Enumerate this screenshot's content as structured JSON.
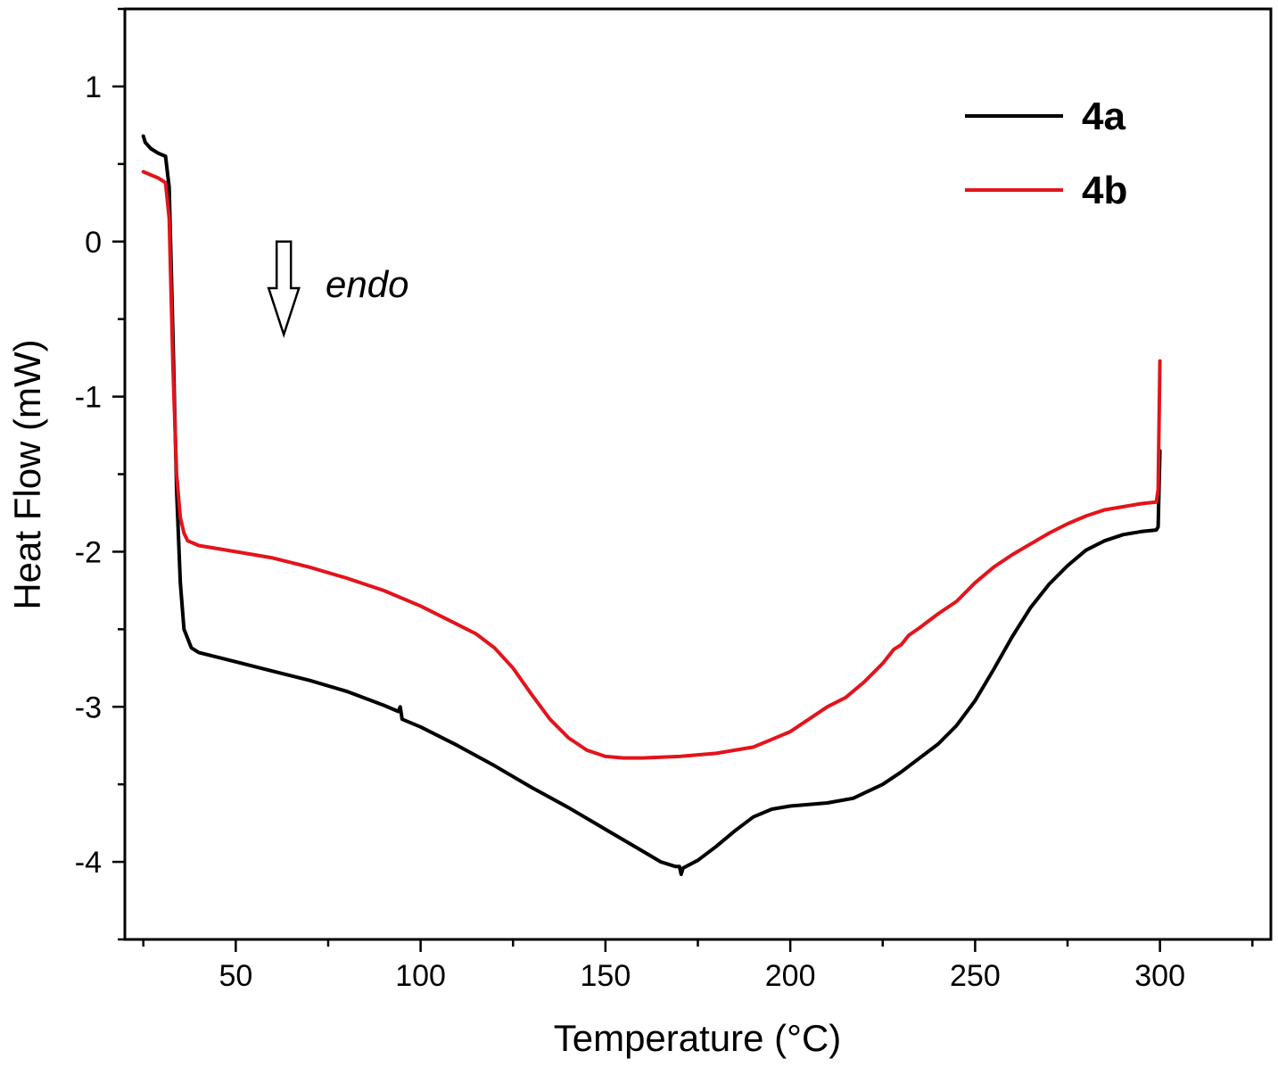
{
  "chart_data": {
    "type": "line",
    "title": "",
    "xlabel": "Temperature (°C)",
    "ylabel": "Heat Flow (mW)",
    "xlim": [
      20,
      330
    ],
    "ylim": [
      -4.5,
      1.5
    ],
    "xticks": [
      50,
      100,
      150,
      200,
      250,
      300
    ],
    "xtick_labels": [
      "50",
      "100",
      "150",
      "200",
      "250",
      "300"
    ],
    "yticks": [
      1,
      0,
      -1,
      -2,
      -3,
      -4
    ],
    "ytick_labels": [
      "1",
      "0",
      "-1",
      "-2",
      "-3",
      "-4"
    ],
    "grid": false,
    "legend_position": "top-right",
    "annotation": {
      "text": "endo",
      "arrow": "down",
      "x": 63,
      "y_top": 0.0,
      "y_bottom": -0.6
    },
    "series": [
      {
        "name": "4a",
        "color": "#000000",
        "points": [
          [
            25,
            0.68
          ],
          [
            25.5,
            0.64
          ],
          [
            27,
            0.6
          ],
          [
            29,
            0.57
          ],
          [
            31,
            0.55
          ],
          [
            32,
            0.35
          ],
          [
            33,
            -0.6
          ],
          [
            34,
            -1.6
          ],
          [
            35,
            -2.2
          ],
          [
            36,
            -2.5
          ],
          [
            38,
            -2.62
          ],
          [
            40,
            -2.65
          ],
          [
            50,
            -2.71
          ],
          [
            60,
            -2.77
          ],
          [
            70,
            -2.83
          ],
          [
            80,
            -2.9
          ],
          [
            90,
            -2.99
          ],
          [
            94,
            -3.03
          ],
          [
            94.5,
            -3.0
          ],
          [
            95,
            -3.08
          ],
          [
            100,
            -3.13
          ],
          [
            110,
            -3.25
          ],
          [
            120,
            -3.38
          ],
          [
            130,
            -3.52
          ],
          [
            140,
            -3.65
          ],
          [
            150,
            -3.79
          ],
          [
            160,
            -3.93
          ],
          [
            165,
            -4.0
          ],
          [
            169,
            -4.03
          ],
          [
            170,
            -4.03
          ],
          [
            170.5,
            -4.08
          ],
          [
            171,
            -4.04
          ],
          [
            175,
            -3.99
          ],
          [
            180,
            -3.9
          ],
          [
            185,
            -3.8
          ],
          [
            190,
            -3.71
          ],
          [
            195,
            -3.66
          ],
          [
            200,
            -3.64
          ],
          [
            210,
            -3.62
          ],
          [
            217,
            -3.59
          ],
          [
            225,
            -3.5
          ],
          [
            230,
            -3.42
          ],
          [
            240,
            -3.24
          ],
          [
            245,
            -3.12
          ],
          [
            250,
            -2.96
          ],
          [
            255,
            -2.76
          ],
          [
            260,
            -2.55
          ],
          [
            265,
            -2.36
          ],
          [
            270,
            -2.21
          ],
          [
            275,
            -2.09
          ],
          [
            280,
            -1.99
          ],
          [
            285,
            -1.93
          ],
          [
            290,
            -1.89
          ],
          [
            295,
            -1.87
          ],
          [
            299,
            -1.86
          ],
          [
            299.5,
            -1.84
          ],
          [
            300,
            -1.35
          ]
        ]
      },
      {
        "name": "4b",
        "color": "#e3141b",
        "points": [
          [
            25,
            0.45
          ],
          [
            27,
            0.43
          ],
          [
            29,
            0.41
          ],
          [
            31,
            0.38
          ],
          [
            32,
            0.15
          ],
          [
            33,
            -0.8
          ],
          [
            34,
            -1.5
          ],
          [
            35,
            -1.78
          ],
          [
            36,
            -1.88
          ],
          [
            37,
            -1.93
          ],
          [
            40,
            -1.96
          ],
          [
            50,
            -2.0
          ],
          [
            60,
            -2.04
          ],
          [
            70,
            -2.1
          ],
          [
            80,
            -2.17
          ],
          [
            90,
            -2.25
          ],
          [
            100,
            -2.35
          ],
          [
            110,
            -2.47
          ],
          [
            115,
            -2.53
          ],
          [
            120,
            -2.62
          ],
          [
            125,
            -2.75
          ],
          [
            130,
            -2.92
          ],
          [
            135,
            -3.08
          ],
          [
            140,
            -3.2
          ],
          [
            145,
            -3.28
          ],
          [
            150,
            -3.32
          ],
          [
            155,
            -3.33
          ],
          [
            160,
            -3.33
          ],
          [
            170,
            -3.32
          ],
          [
            180,
            -3.3
          ],
          [
            190,
            -3.26
          ],
          [
            195,
            -3.21
          ],
          [
            200,
            -3.16
          ],
          [
            205,
            -3.08
          ],
          [
            210,
            -3.0
          ],
          [
            215,
            -2.94
          ],
          [
            220,
            -2.84
          ],
          [
            225,
            -2.72
          ],
          [
            228,
            -2.63
          ],
          [
            230,
            -2.6
          ],
          [
            232,
            -2.54
          ],
          [
            235,
            -2.49
          ],
          [
            240,
            -2.4
          ],
          [
            245,
            -2.32
          ],
          [
            250,
            -2.2
          ],
          [
            255,
            -2.1
          ],
          [
            260,
            -2.02
          ],
          [
            265,
            -1.95
          ],
          [
            270,
            -1.88
          ],
          [
            275,
            -1.82
          ],
          [
            280,
            -1.77
          ],
          [
            285,
            -1.73
          ],
          [
            290,
            -1.71
          ],
          [
            295,
            -1.69
          ],
          [
            299,
            -1.68
          ],
          [
            299.5,
            -1.6
          ],
          [
            300,
            -0.77
          ]
        ]
      }
    ]
  }
}
